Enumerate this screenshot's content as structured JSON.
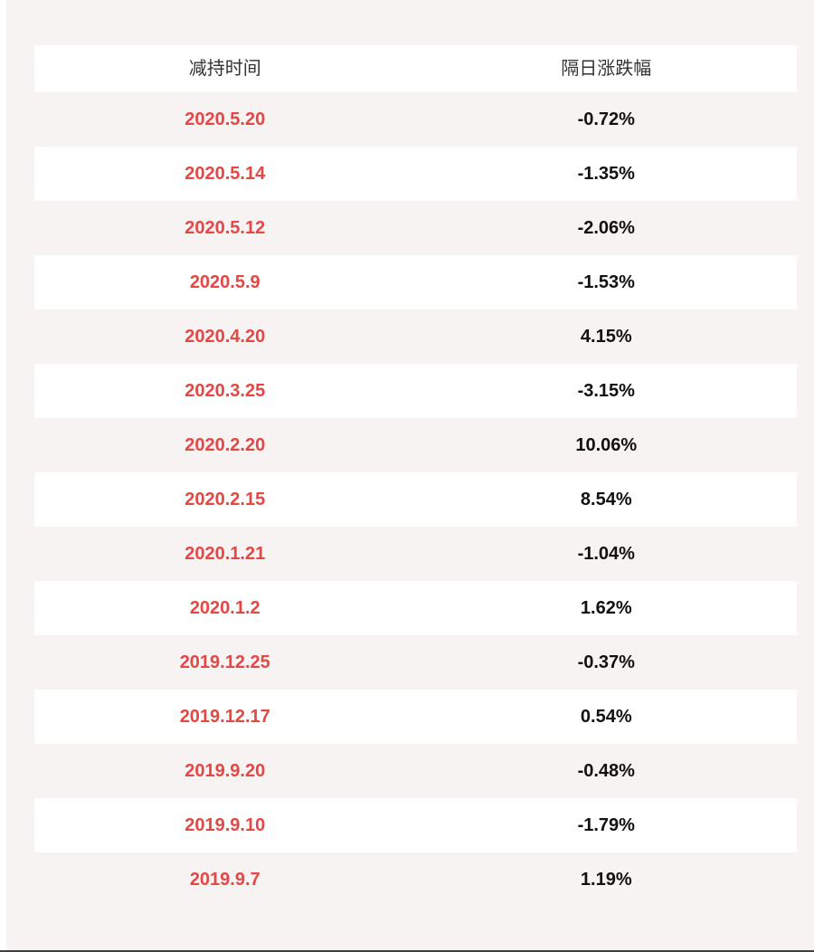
{
  "page": {
    "background_color": "#f8f3f3",
    "row_highlight_color": "#ffffff",
    "date_text_color": "#e24845",
    "change_text_color": "#111111",
    "header_text_color": "#333333",
    "bottom_bar_color": "#404040"
  },
  "table": {
    "columns": [
      "减持时间",
      "隔日涨跌幅"
    ],
    "rows": [
      {
        "date": "2020.5.20",
        "change": "-0.72%"
      },
      {
        "date": "2020.5.14",
        "change": "-1.35%"
      },
      {
        "date": "2020.5.12",
        "change": "-2.06%"
      },
      {
        "date": "2020.5.9",
        "change": "-1.53%"
      },
      {
        "date": "2020.4.20",
        "change": "4.15%"
      },
      {
        "date": "2020.3.25",
        "change": "-3.15%"
      },
      {
        "date": "2020.2.20",
        "change": "10.06%"
      },
      {
        "date": "2020.2.15",
        "change": "8.54%"
      },
      {
        "date": "2020.1.21",
        "change": "-1.04%"
      },
      {
        "date": "2020.1.2",
        "change": "1.62%"
      },
      {
        "date": "2019.12.25",
        "change": "-0.37%"
      },
      {
        "date": "2019.12.17",
        "change": "0.54%"
      },
      {
        "date": "2019.9.20",
        "change": "-0.48%"
      },
      {
        "date": "2019.9.10",
        "change": "-1.79%"
      },
      {
        "date": "2019.9.7",
        "change": "1.19%"
      }
    ]
  },
  "chart_data": {
    "type": "table",
    "columns": [
      "减持时间",
      "隔日涨跌幅"
    ],
    "rows": [
      [
        "2020.5.20",
        "-0.72%"
      ],
      [
        "2020.5.14",
        "-1.35%"
      ],
      [
        "2020.5.12",
        "-2.06%"
      ],
      [
        "2020.5.9",
        "-1.53%"
      ],
      [
        "2020.4.20",
        "4.15%"
      ],
      [
        "2020.3.25",
        "-3.15%"
      ],
      [
        "2020.2.20",
        "10.06%"
      ],
      [
        "2020.2.15",
        "8.54%"
      ],
      [
        "2020.1.21",
        "-1.04%"
      ],
      [
        "2020.1.2",
        "1.62%"
      ],
      [
        "2019.12.25",
        "-0.37%"
      ],
      [
        "2019.12.17",
        "0.54%"
      ],
      [
        "2019.9.20",
        "-0.48%"
      ],
      [
        "2019.9.10",
        "-1.79%"
      ],
      [
        "2019.9.7",
        "1.19%"
      ]
    ],
    "layout": {
      "alternating_row_colors": [
        "#f8f3f3",
        "#ffffff"
      ],
      "value_columns_centered": true
    }
  }
}
